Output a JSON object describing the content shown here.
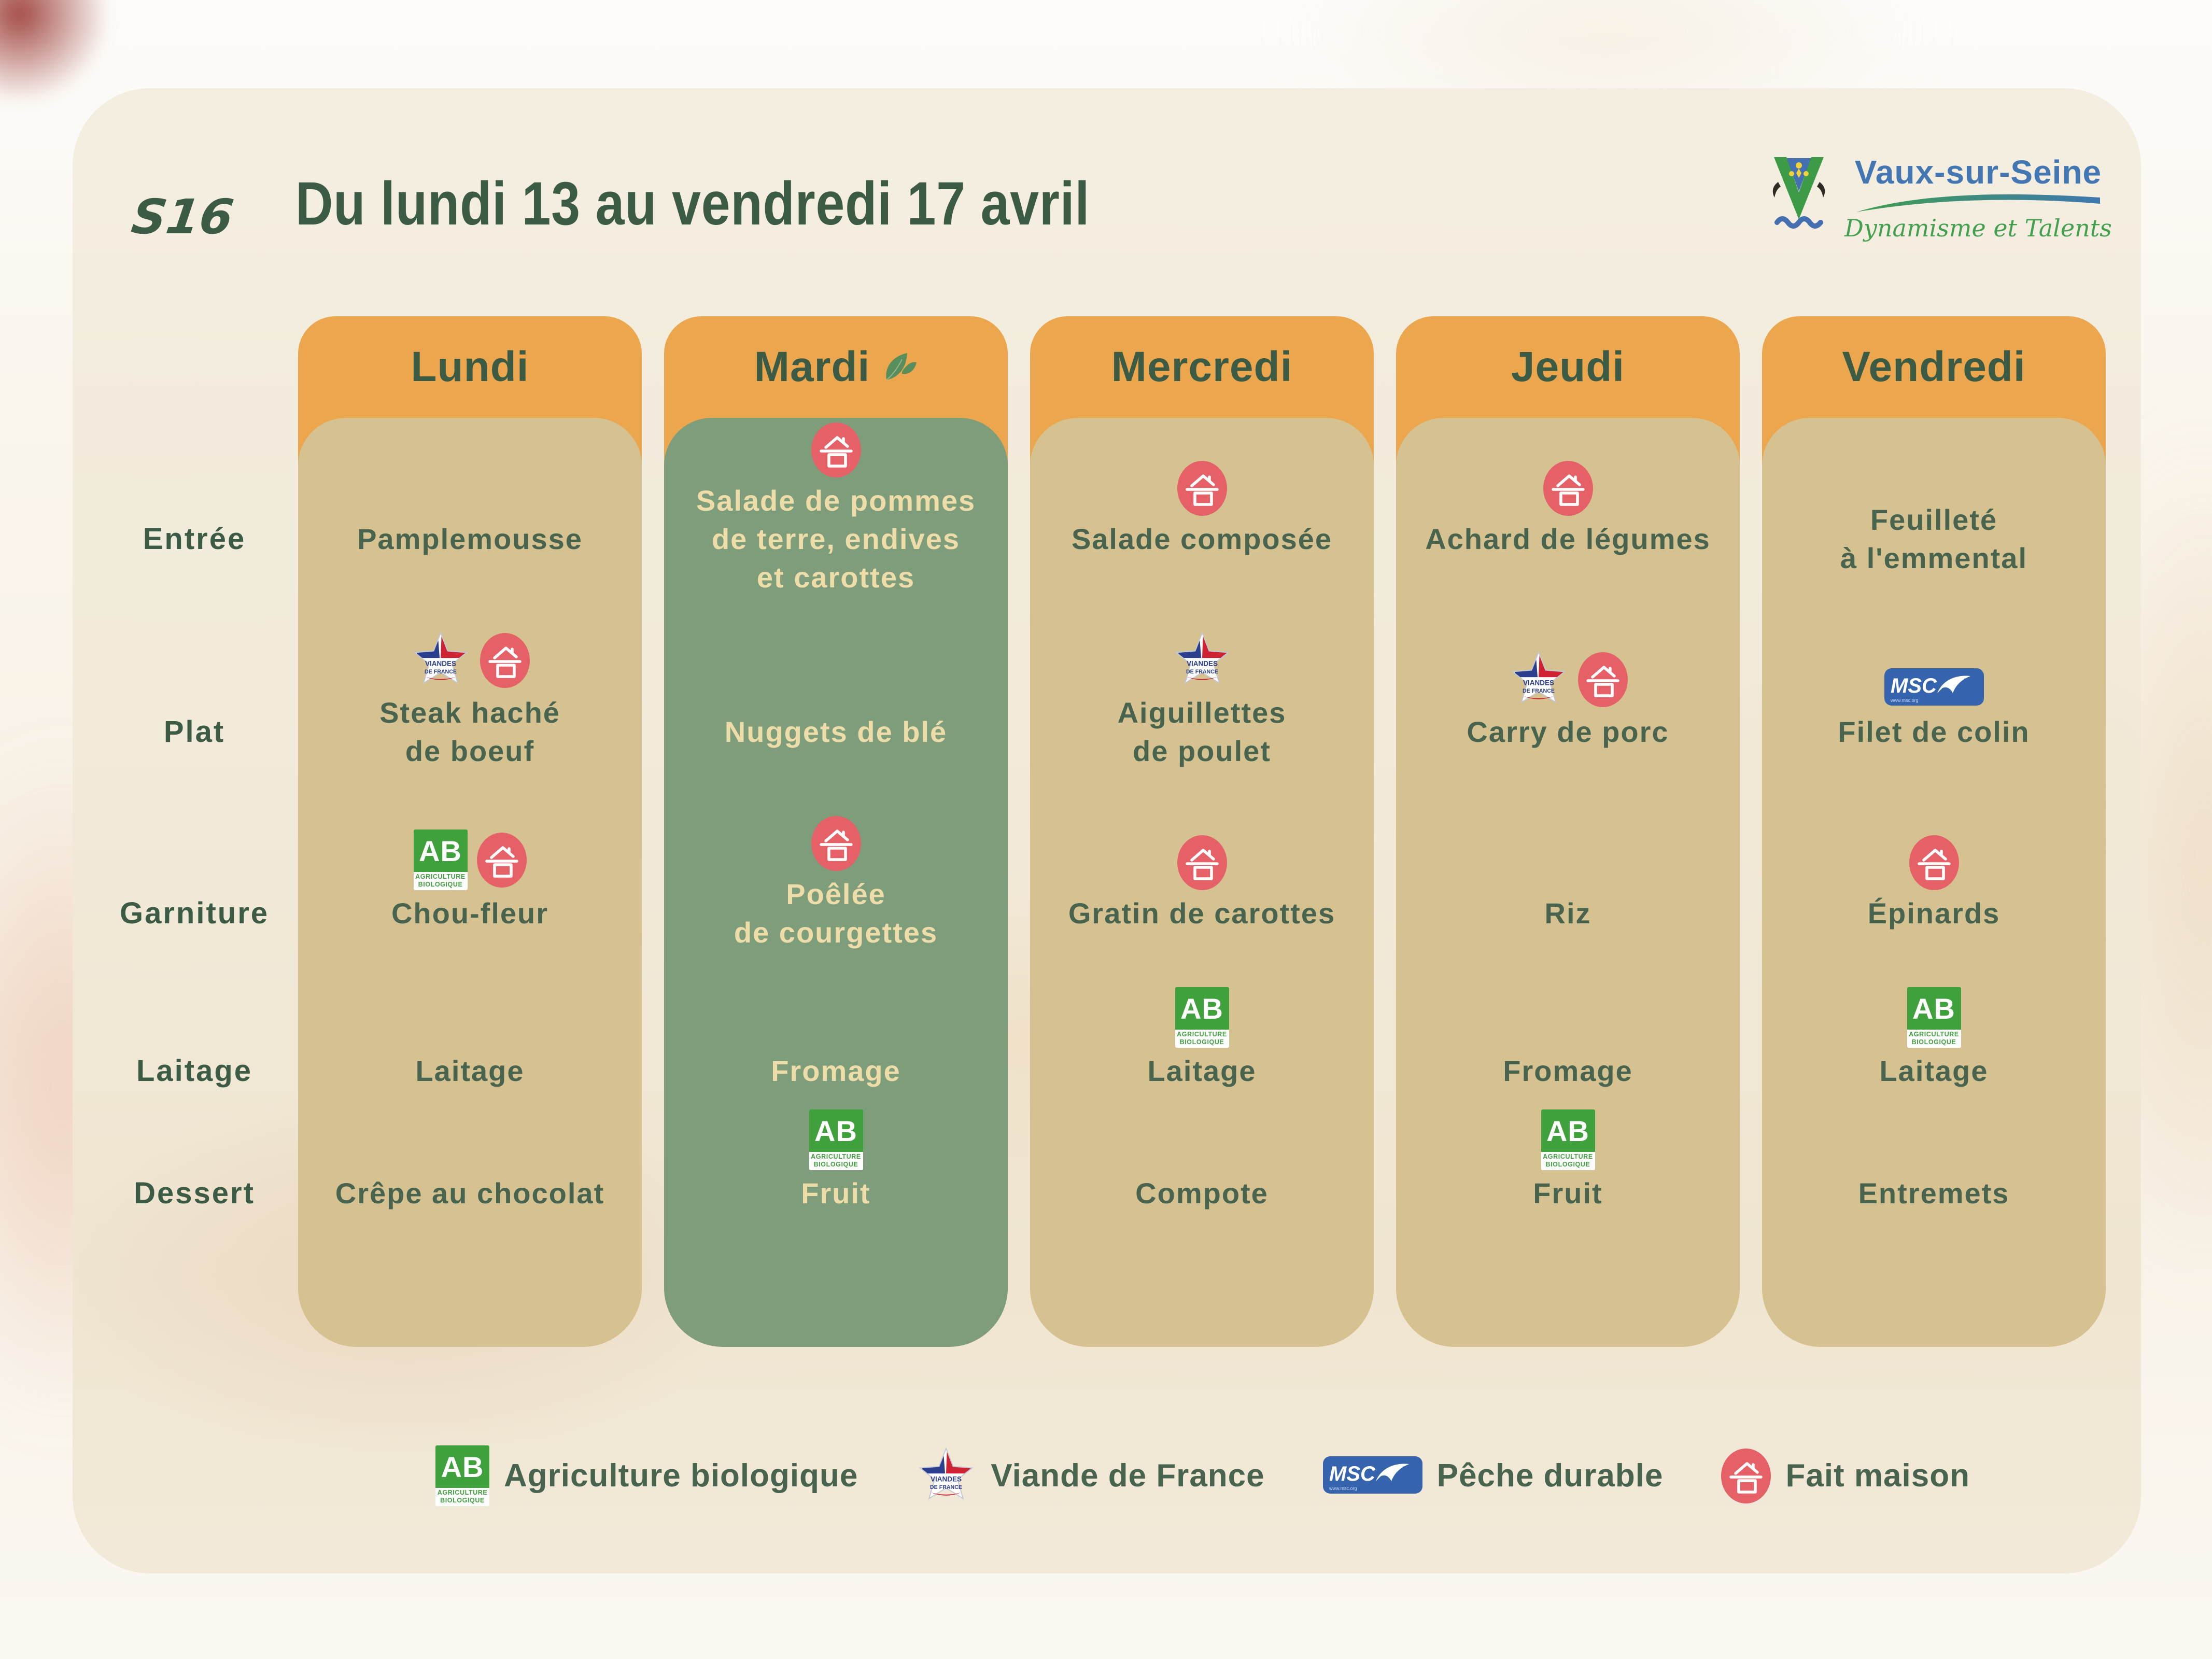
{
  "header": {
    "week_code": "S16",
    "title": "Du lundi 13 au vendredi 17 avril"
  },
  "logo": {
    "commune": "Vaux-sur-Seine",
    "tagline": "Dynamisme et Talents"
  },
  "colors": {
    "orange": "#ECA74E",
    "tan_panel": "#D5C290",
    "green_panel": "#7E9D7A",
    "dark_green_text": "#3C5B45",
    "food_text_dark": "#48644F",
    "food_text_cream": "#EFDDA9",
    "fait_maison_red": "#E56167",
    "ab_green": "#3FA13C",
    "msc_blue": "#3663AD",
    "logo_blue": "#4377B4",
    "logo_green": "#42A04F",
    "leaf_green": "#578E5C"
  },
  "row_labels": [
    {
      "id": "entree",
      "label": "Entrée"
    },
    {
      "id": "plat",
      "label": "Plat"
    },
    {
      "id": "garniture",
      "label": "Garniture"
    },
    {
      "id": "laitage",
      "label": "Laitage"
    },
    {
      "id": "dessert",
      "label": "Dessert"
    }
  ],
  "days": [
    {
      "label": "Lundi",
      "theme": "tan",
      "vegetarian": false,
      "menu": {
        "entree": {
          "lines": [
            "Pamplemousse"
          ],
          "icons": []
        },
        "plat": {
          "lines": [
            "Steak haché",
            "de boeuf"
          ],
          "icons": [
            "viande",
            "maison"
          ]
        },
        "garniture": {
          "lines": [
            "Chou-fleur"
          ],
          "icons": [
            "ab",
            "maison"
          ]
        },
        "laitage": {
          "lines": [
            "Laitage"
          ],
          "icons": []
        },
        "dessert": {
          "lines": [
            "Crêpe au chocolat"
          ],
          "icons": []
        }
      }
    },
    {
      "label": "Mardi",
      "theme": "green",
      "vegetarian": true,
      "menu": {
        "entree": {
          "lines": [
            "Salade de pommes",
            "de terre, endives",
            "et carottes"
          ],
          "icons": [
            "maison"
          ]
        },
        "plat": {
          "lines": [
            "Nuggets de blé"
          ],
          "icons": []
        },
        "garniture": {
          "lines": [
            "Poêlée",
            "de courgettes"
          ],
          "icons": [
            "maison"
          ]
        },
        "laitage": {
          "lines": [
            "Fromage"
          ],
          "icons": []
        },
        "dessert": {
          "lines": [
            "Fruit"
          ],
          "icons": [
            "ab"
          ]
        }
      }
    },
    {
      "label": "Mercredi",
      "theme": "tan",
      "vegetarian": false,
      "menu": {
        "entree": {
          "lines": [
            "Salade composée"
          ],
          "icons": [
            "maison"
          ]
        },
        "plat": {
          "lines": [
            "Aiguillettes",
            "de poulet"
          ],
          "icons": [
            "viande"
          ]
        },
        "garniture": {
          "lines": [
            "Gratin de carottes"
          ],
          "icons": [
            "maison"
          ]
        },
        "laitage": {
          "lines": [
            "Laitage"
          ],
          "icons": [
            "ab"
          ]
        },
        "dessert": {
          "lines": [
            "Compote"
          ],
          "icons": []
        }
      }
    },
    {
      "label": "Jeudi",
      "theme": "tan",
      "vegetarian": false,
      "menu": {
        "entree": {
          "lines": [
            "Achard de légumes"
          ],
          "icons": [
            "maison"
          ]
        },
        "plat": {
          "lines": [
            "Carry de porc"
          ],
          "icons": [
            "viande",
            "maison"
          ]
        },
        "garniture": {
          "lines": [
            "Riz"
          ],
          "icons": []
        },
        "laitage": {
          "lines": [
            "Fromage"
          ],
          "icons": []
        },
        "dessert": {
          "lines": [
            "Fruit"
          ],
          "icons": [
            "ab"
          ]
        }
      }
    },
    {
      "label": "Vendredi",
      "theme": "tan",
      "vegetarian": false,
      "menu": {
        "entree": {
          "lines": [
            "Feuilleté",
            "à l'emmental"
          ],
          "icons": []
        },
        "plat": {
          "lines": [
            "Filet de colin"
          ],
          "icons": [
            "msc"
          ]
        },
        "garniture": {
          "lines": [
            "Épinards"
          ],
          "icons": [
            "maison"
          ]
        },
        "laitage": {
          "lines": [
            "Laitage"
          ],
          "icons": [
            "ab"
          ]
        },
        "dessert": {
          "lines": [
            "Entremets"
          ],
          "icons": []
        }
      }
    }
  ],
  "legend": [
    {
      "icon": "ab",
      "label": "Agriculture biologique"
    },
    {
      "icon": "viande",
      "label": "Viande de France"
    },
    {
      "icon": "msc",
      "label": "Pêche durable"
    },
    {
      "icon": "maison",
      "label": "Fait maison"
    }
  ],
  "badges": {
    "ab_text": "AB",
    "ab_caption_1": "AGRICULTURE",
    "ab_caption_2": "BIOLOGIQUE",
    "viande_line1": "VIANDES",
    "viande_line2": "DE FRANCE",
    "msc_text": "MSC",
    "msc_url": "www.msc.org"
  }
}
